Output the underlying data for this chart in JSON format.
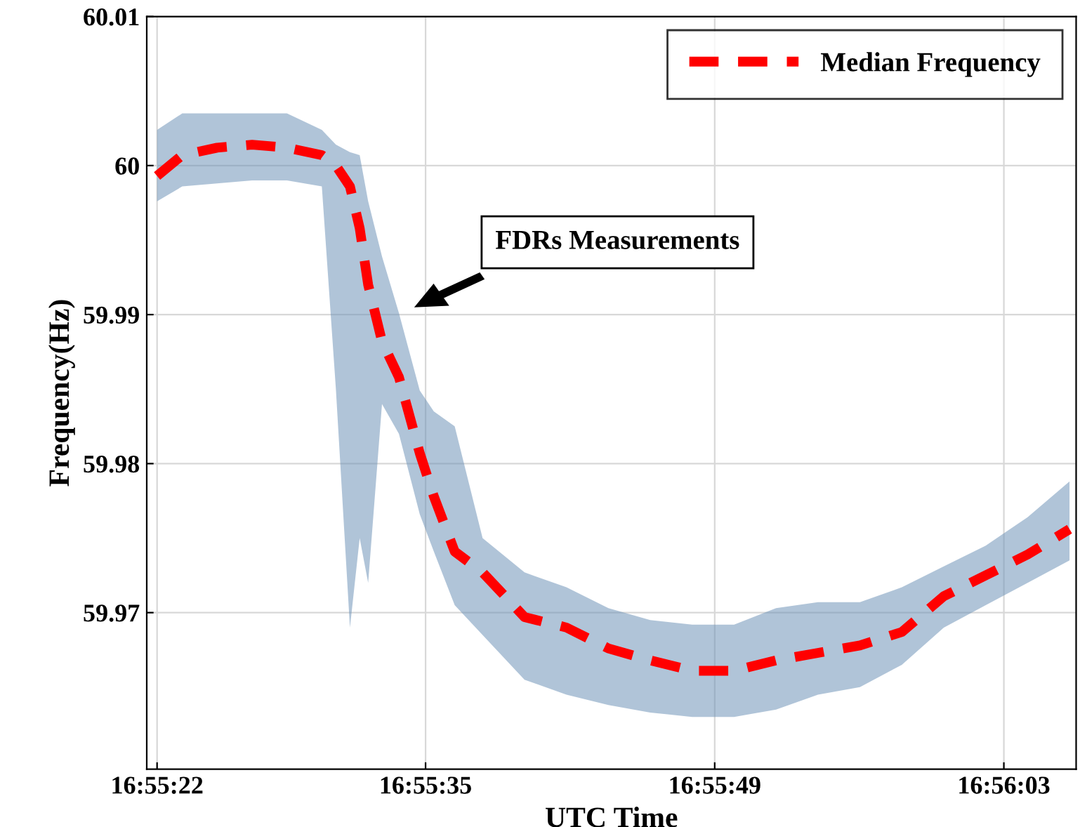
{
  "chart_data": {
    "type": "line",
    "xlabel": "UTC Time",
    "ylabel": "Frequency(Hz)",
    "x": [
      16.922778,
      16.923117,
      16.923586,
      16.924056,
      16.924525,
      16.924994,
      16.925183,
      16.925372,
      16.925503,
      16.925617,
      16.925803,
      16.926031,
      16.926311,
      16.9265,
      16.926781,
      16.927156,
      16.92772,
      16.928284,
      16.928848,
      16.929411,
      16.929975,
      16.930539,
      16.931103,
      16.931667,
      16.932231,
      16.932795,
      16.933359,
      16.933923,
      16.934486,
      16.93505
    ],
    "series": [
      {
        "name": "Median Frequency",
        "color": "#ff0000",
        "values": [
          59.9993,
          60.0007,
          60.0012,
          60.0014,
          60.0012,
          60.0007,
          60.0,
          59.9986,
          59.9958,
          59.992,
          59.9882,
          59.9858,
          59.9807,
          59.9778,
          59.9741,
          59.9727,
          59.9697,
          59.969,
          59.9676,
          59.9668,
          59.9661,
          59.9661,
          59.9668,
          59.9673,
          59.9678,
          59.9687,
          59.9711,
          59.9725,
          59.9739,
          59.9756
        ],
        "lower": [
          59.9976,
          59.9986,
          59.9988,
          59.999,
          59.999,
          59.9986,
          59.985,
          59.969,
          59.975,
          59.972,
          59.984,
          59.982,
          59.9766,
          59.9741,
          59.9705,
          59.9685,
          59.9655,
          59.9645,
          59.9638,
          59.9633,
          59.963,
          59.963,
          59.9635,
          59.9645,
          59.965,
          59.9665,
          59.969,
          59.9705,
          59.972,
          59.9735
        ],
        "upper": [
          60.0024,
          60.0035,
          60.0035,
          60.0035,
          60.0035,
          60.0024,
          60.0014,
          60.0009,
          60.0007,
          59.9976,
          59.9939,
          59.9901,
          59.9849,
          59.9835,
          59.9825,
          59.975,
          59.9727,
          59.9717,
          59.9703,
          59.9695,
          59.9692,
          59.9692,
          59.9703,
          59.9707,
          59.9707,
          59.9717,
          59.9731,
          59.9745,
          59.9764,
          59.9788
        ]
      }
    ],
    "annotations": [
      "FDRs Measurements"
    ],
    "xlim": [
      16.922639,
      16.935139
    ],
    "xticks": [
      {
        "value": 16.922778,
        "label": "16:55:22"
      },
      {
        "value": 16.926389,
        "label": "16:55:35"
      },
      {
        "value": 16.930278,
        "label": "16:55:49"
      },
      {
        "value": 16.934167,
        "label": "16:56:03"
      }
    ],
    "ylim": [
      59.9595,
      60.01
    ],
    "yticks": [
      59.97,
      59.98,
      59.99,
      60,
      60.01
    ],
    "grid": true,
    "legend": "top right",
    "marker": "none",
    "line_style": "dashed"
  }
}
